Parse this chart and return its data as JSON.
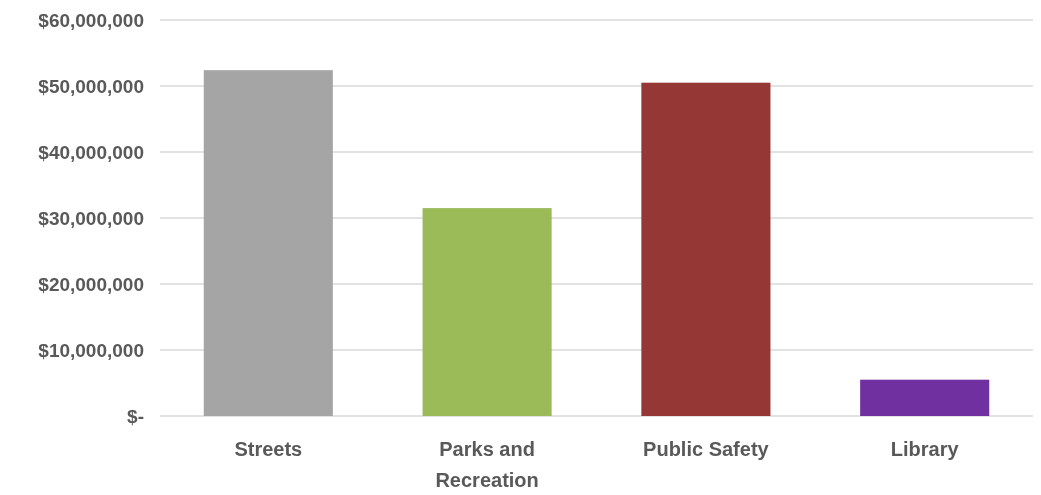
{
  "chart_data": {
    "type": "bar",
    "categories": [
      "Streets",
      "Parks and Recreation",
      "Public Safety",
      "Library"
    ],
    "values": [
      52400000,
      31500000,
      50500000,
      5500000
    ],
    "colors": [
      "#a5a5a5",
      "#9bbb59",
      "#953735",
      "#7030a0"
    ],
    "ylim": [
      0,
      60000000
    ],
    "yticks": [
      {
        "value": 0,
        "label": "$-"
      },
      {
        "value": 10000000,
        "label": "$10,000,000"
      },
      {
        "value": 20000000,
        "label": "$20,000,000"
      },
      {
        "value": 30000000,
        "label": "$30,000,000"
      },
      {
        "value": 40000000,
        "label": "$40,000,000"
      },
      {
        "value": 50000000,
        "label": "$50,000,000"
      },
      {
        "value": 60000000,
        "label": "$60,000,000"
      }
    ],
    "grid": "y"
  }
}
